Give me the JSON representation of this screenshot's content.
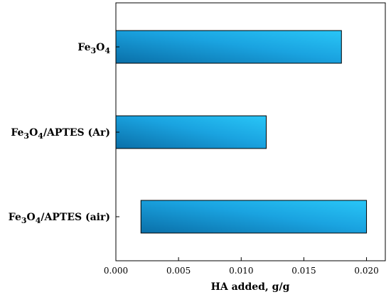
{
  "chart_data": {
    "type": "bar",
    "orientation": "horizontal",
    "categories": [
      {
        "base": "Fe",
        "sub1": "3",
        "mid": "O",
        "sub2": "4",
        "suffix": ""
      },
      {
        "base": "Fe",
        "sub1": "3",
        "mid": "O",
        "sub2": "4",
        "suffix": "/APTES (Ar)"
      },
      {
        "base": "Fe",
        "sub1": "3",
        "mid": "O",
        "sub2": "4",
        "suffix": "/APTES (air)"
      }
    ],
    "series": [
      {
        "ranges": [
          [
            0.0,
            0.018
          ],
          [
            0.0,
            0.012
          ],
          [
            0.002,
            0.02
          ]
        ]
      }
    ],
    "xlabel": "HA added, g/g",
    "xlim": [
      0.0,
      0.0215
    ],
    "xticks": [
      "0.000",
      "0.005",
      "0.010",
      "0.015",
      "0.020"
    ],
    "grid": false,
    "colors": {
      "bar_dark": "#0a6fa8",
      "bar_mid": "#1aa3e0",
      "bar_light": "#29c6f7",
      "bar_stroke": "#000000"
    }
  }
}
